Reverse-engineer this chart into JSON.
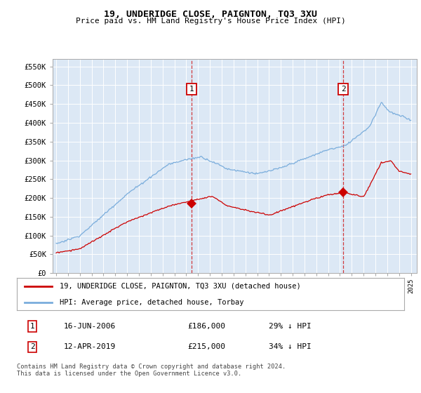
{
  "title": "19, UNDERIDGE CLOSE, PAIGNTON, TQ3 3XU",
  "subtitle": "Price paid vs. HM Land Registry's House Price Index (HPI)",
  "ylabel_ticks": [
    "£0",
    "£50K",
    "£100K",
    "£150K",
    "£200K",
    "£250K",
    "£300K",
    "£350K",
    "£400K",
    "£450K",
    "£500K",
    "£550K"
  ],
  "ytick_values": [
    0,
    50000,
    100000,
    150000,
    200000,
    250000,
    300000,
    350000,
    400000,
    450000,
    500000,
    550000
  ],
  "ylim": [
    0,
    570000
  ],
  "x_start_year": 1995,
  "x_end_year": 2025,
  "hpi_color": "#7aaddc",
  "property_color": "#cc0000",
  "bg_color": "#dce8f5",
  "sale1_date": 2006.46,
  "sale1_price": 186000,
  "sale2_date": 2019.28,
  "sale2_price": 215000,
  "legend_property": "19, UNDERIDGE CLOSE, PAIGNTON, TQ3 3XU (detached house)",
  "legend_hpi": "HPI: Average price, detached house, Torbay",
  "annotation1_date": "16-JUN-2006",
  "annotation1_price": "£186,000",
  "annotation1_pct": "29% ↓ HPI",
  "annotation2_date": "12-APR-2019",
  "annotation2_price": "£215,000",
  "annotation2_pct": "34% ↓ HPI",
  "footer": "Contains HM Land Registry data © Crown copyright and database right 2024.\nThis data is licensed under the Open Government Licence v3.0."
}
